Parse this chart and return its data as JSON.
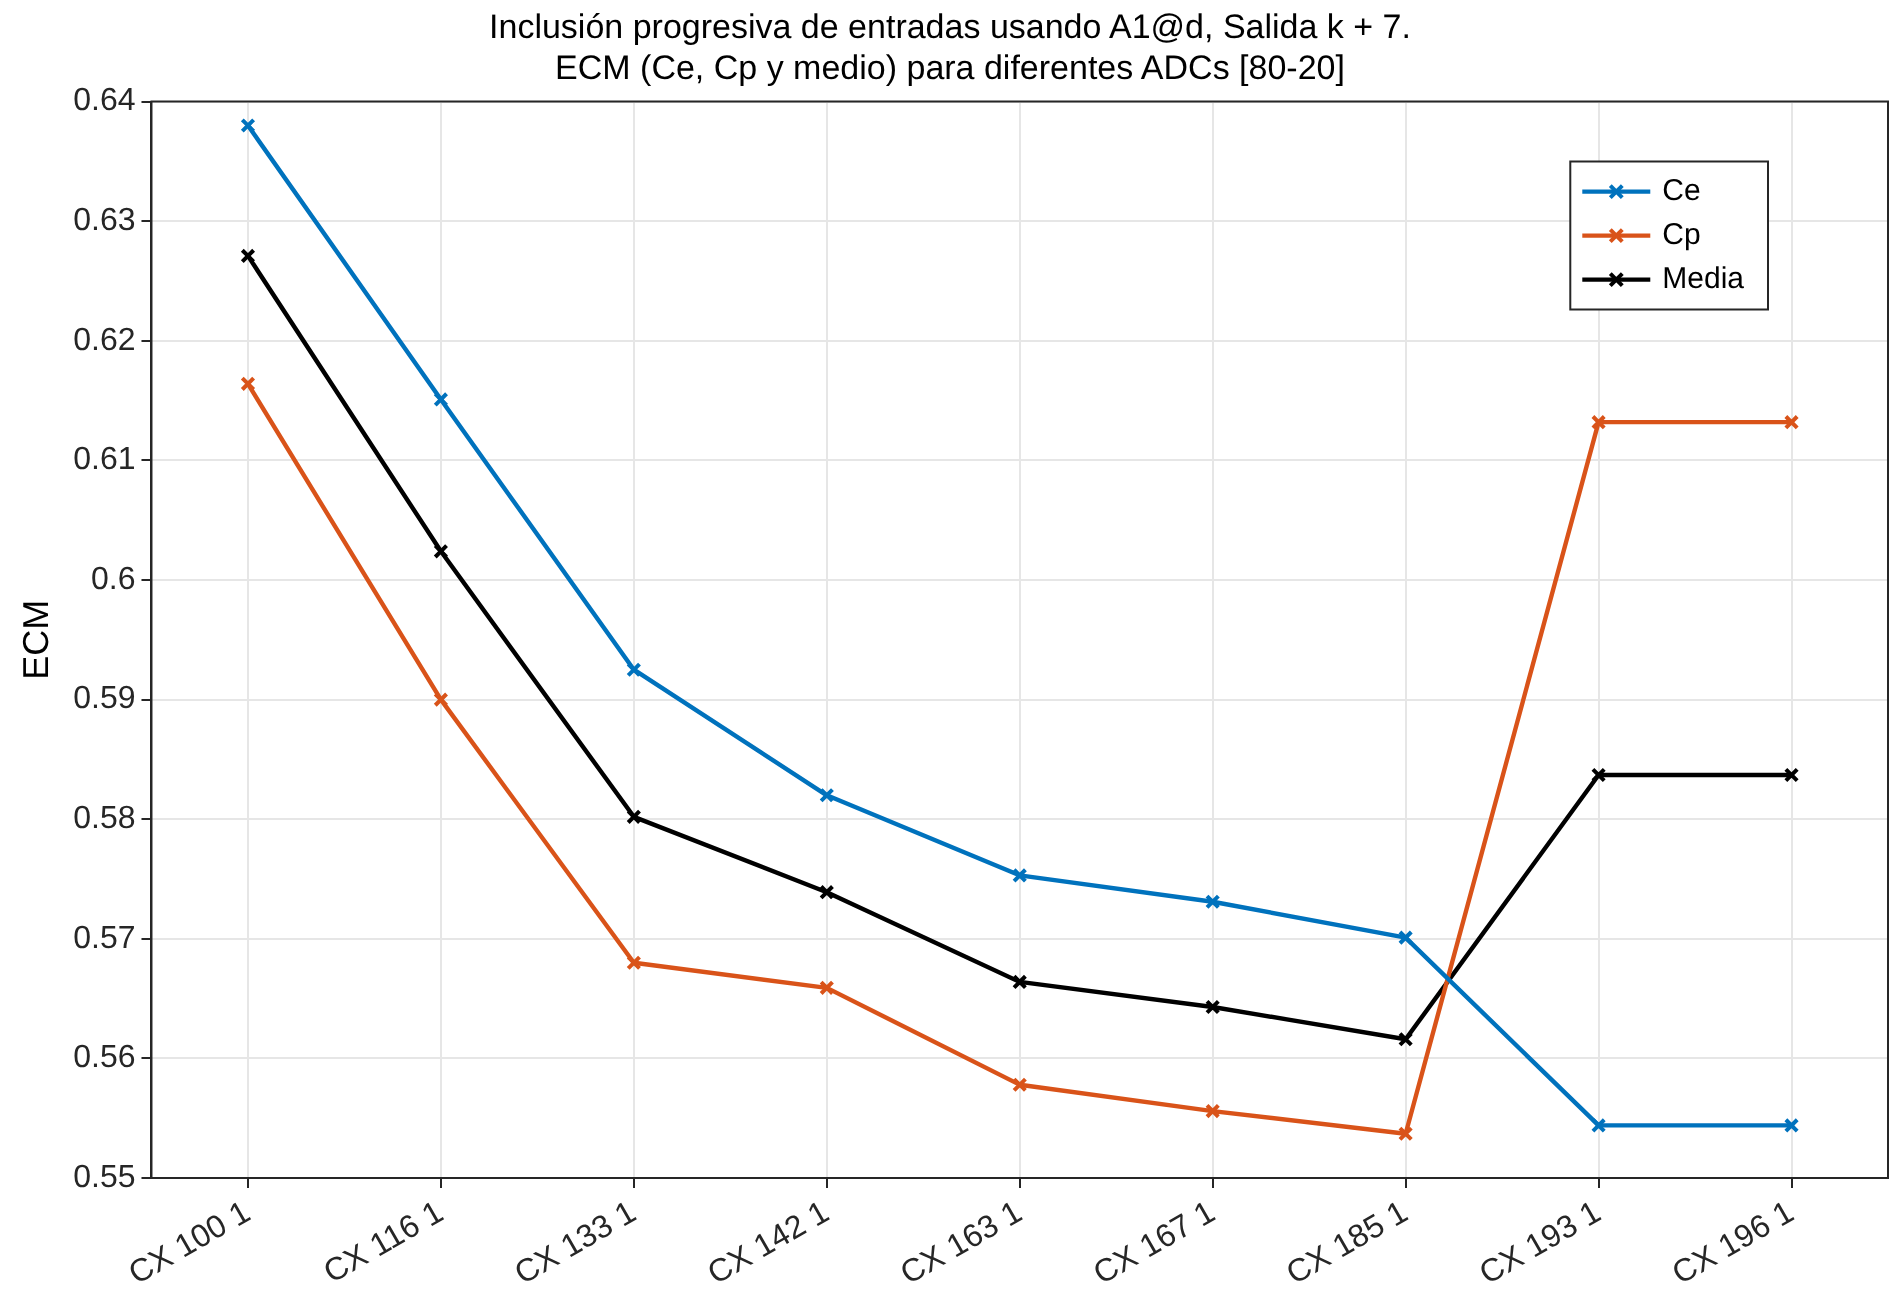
{
  "chart_data": {
    "type": "line",
    "title": "Inclusión progresiva de entradas usando A1@d, Salida k + 7.\nECM (Ce, Cp y medio) para diferentes ADCs [80-20]",
    "ylabel": "ECM",
    "categories": [
      "CX 100 1",
      "CX 116 1",
      "CX 133 1",
      "CX 142 1",
      "CX 163 1",
      "CX 167 1",
      "CX 185 1",
      "CX 193 1",
      "CX 196 1"
    ],
    "series": [
      {
        "name": "Ce",
        "color": "#0072bd",
        "values": [
          0.638,
          0.6151,
          0.5925,
          0.582,
          0.5753,
          0.5731,
          0.5701,
          0.5544,
          0.5544
        ]
      },
      {
        "name": "Cp",
        "color": "#d95319",
        "values": [
          0.6164,
          0.59,
          0.568,
          0.5659,
          0.5578,
          0.5556,
          0.5537,
          0.6132,
          0.6132
        ]
      },
      {
        "name": "Media",
        "color": "#000000",
        "values": [
          0.6271,
          0.6024,
          0.5802,
          0.5739,
          0.5664,
          0.5643,
          0.5616,
          0.5837,
          0.5837
        ]
      }
    ],
    "ylim": [
      0.55,
      0.64
    ],
    "yticks": [
      0.55,
      0.56,
      0.57,
      0.58,
      0.59,
      {
        "value": 0.6,
        "label": "0.6"
      },
      0.61,
      0.62,
      0.63,
      0.64
    ],
    "grid": true,
    "legend": "top right",
    "marker": "cross",
    "line_style": "solid"
  }
}
